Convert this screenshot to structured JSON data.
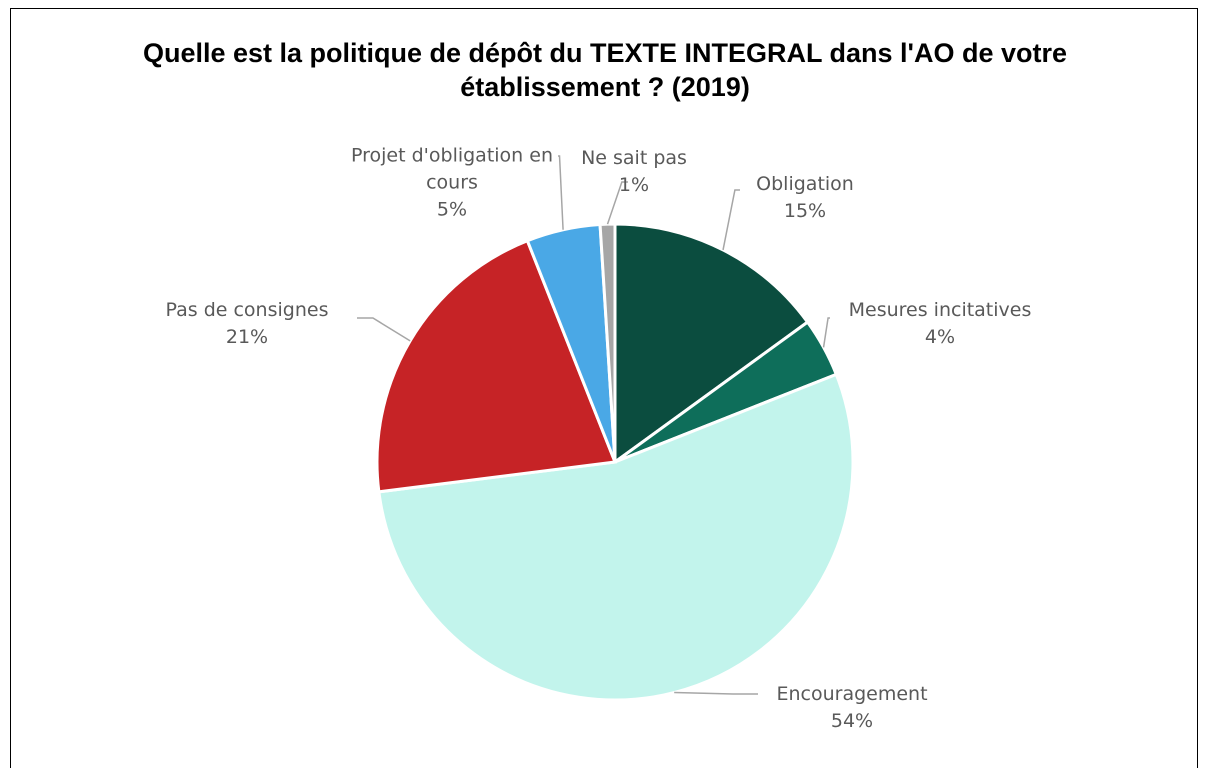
{
  "chart_data": {
    "type": "pie",
    "title": "Quelle est la politique de dépôt du TEXTE INTEGRAL dans l'AO de votre établissement ? (2019)",
    "categories": [
      "Obligation",
      "Mesures incitatives",
      "Encouragement",
      "Pas de consignes",
      "Projet d'obligation en cours",
      "Ne sait pas"
    ],
    "values": [
      15,
      4,
      54,
      21,
      5,
      1
    ],
    "value_labels": [
      "15%",
      "4%",
      "54%",
      "21%",
      "5%",
      "1%"
    ],
    "colors": [
      "#0b4d3f",
      "#0e6e5a",
      "#c2f4ec",
      "#c62326",
      "#4aa8e6",
      "#a6a6a6"
    ]
  }
}
